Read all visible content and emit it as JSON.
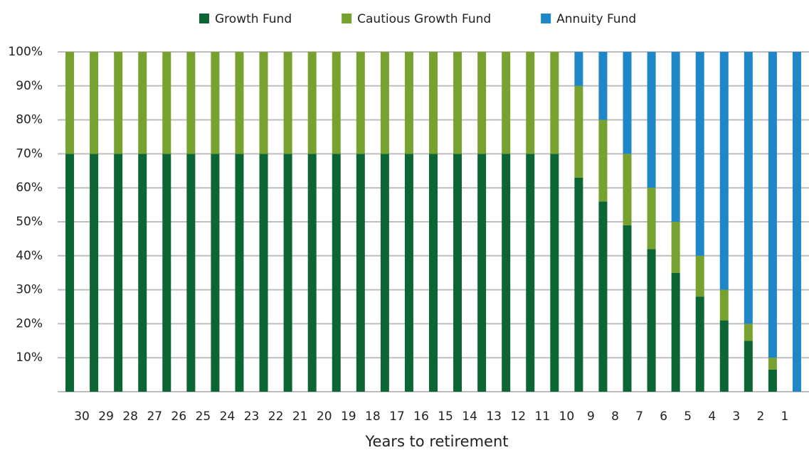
{
  "chart_data": {
    "type": "stacked-bar",
    "x_label": "Years to retirement",
    "categories": [
      "30",
      "29",
      "28",
      "27",
      "26",
      "25",
      "24",
      "23",
      "22",
      "21",
      "20",
      "19",
      "18",
      "17",
      "16",
      "15",
      "14",
      "13",
      "12",
      "11",
      "10",
      "9",
      "8",
      "7",
      "6",
      "5",
      "4",
      "3",
      "2",
      "1",
      null
    ],
    "series": [
      {
        "name": "Growth Fund",
        "color": "#0b6634",
        "values": [
          70,
          70,
          70,
          70,
          70,
          70,
          70,
          70,
          70,
          70,
          70,
          70,
          70,
          70,
          70,
          70,
          70,
          70,
          70,
          70,
          70,
          63,
          56,
          49,
          42,
          35,
          28,
          21,
          15,
          6.5,
          0
        ]
      },
      {
        "name": "Cautious Growth Fund",
        "color": "#77a22f",
        "values": [
          30,
          30,
          30,
          30,
          30,
          30,
          30,
          30,
          30,
          30,
          30,
          30,
          30,
          30,
          30,
          30,
          30,
          30,
          30,
          30,
          30,
          27,
          24,
          21,
          18,
          15,
          12,
          9,
          5,
          3.5,
          0
        ]
      },
      {
        "name": "Annuity Fund",
        "color": "#1f87c7",
        "values": [
          0,
          0,
          0,
          0,
          0,
          0,
          0,
          0,
          0,
          0,
          0,
          0,
          0,
          0,
          0,
          0,
          0,
          0,
          0,
          0,
          0,
          10,
          20,
          30,
          40,
          50,
          60,
          70,
          80,
          90,
          100
        ]
      }
    ],
    "ylim": [
      0,
      100
    ],
    "yticks": [
      {
        "value": 10,
        "label": "10%"
      },
      {
        "value": 20,
        "label": "20%"
      },
      {
        "value": 30,
        "label": "30%"
      },
      {
        "value": 40,
        "label": "40%"
      },
      {
        "value": 50,
        "label": "50%"
      },
      {
        "value": 60,
        "label": "60%"
      },
      {
        "value": 70,
        "label": "70%"
      },
      {
        "value": 80,
        "label": "80%"
      },
      {
        "value": 90,
        "label": "90%"
      },
      {
        "value": 100,
        "label": "100%"
      }
    ],
    "grid": true,
    "legend": "top"
  }
}
